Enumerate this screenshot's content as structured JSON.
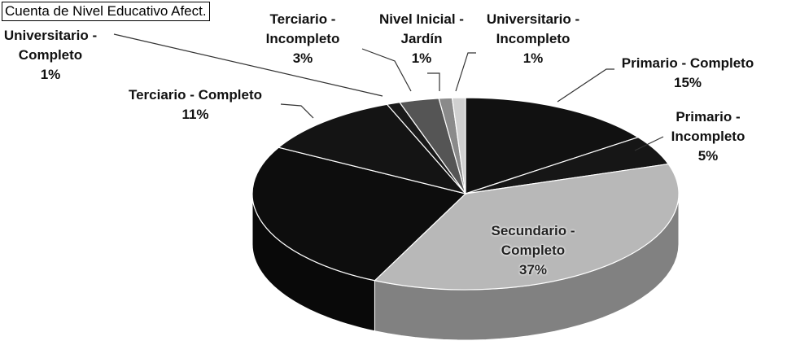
{
  "chart_data": {
    "type": "pie3d",
    "title": "Cuenta de Nivel Educativo Afect.",
    "categories": [
      "Primario - Completo",
      "Primario - Incompleto",
      "Secundario - Completo",
      null,
      "Terciario - Completo",
      "Universitario - Completo",
      "Terciario - Incompleto",
      "Nivel Inicial - Jardín",
      "Universitario - Incompleto"
    ],
    "values": [
      15,
      5,
      37,
      26,
      11,
      1,
      3,
      1,
      1
    ],
    "value_labels": [
      "15%",
      "5%",
      "37%",
      null,
      "11%",
      "1%",
      "3%",
      "1%",
      "1%"
    ],
    "colors": [
      "#111111",
      "#161616",
      "#b8b8b8",
      "#0d0d0d",
      "#141414",
      "#1a1a1a",
      "#555555",
      "#8a8a8a",
      "#d0d0d0"
    ]
  }
}
